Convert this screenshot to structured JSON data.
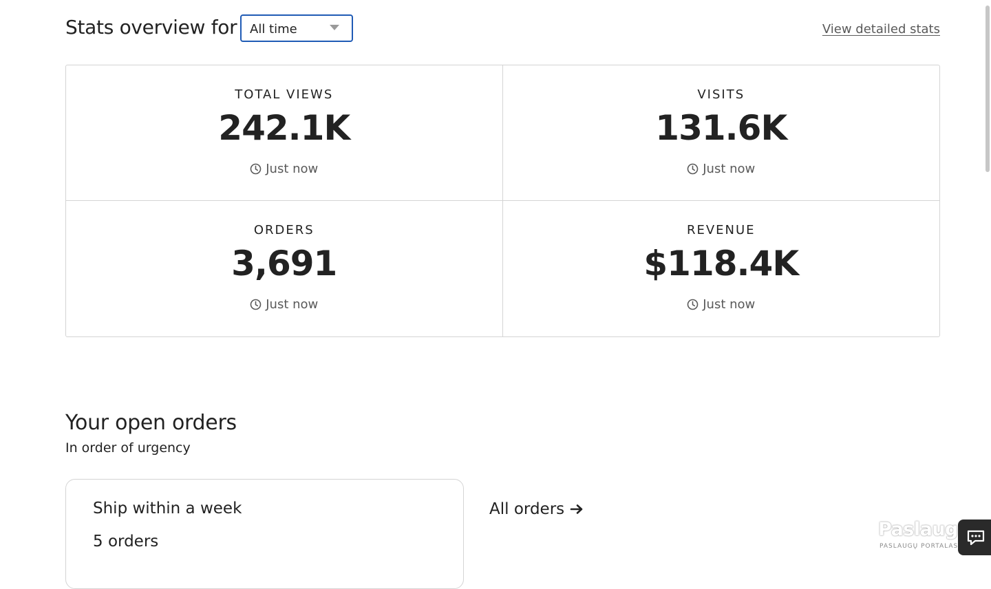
{
  "stats": {
    "title": "Stats overview for",
    "period_select": {
      "value": "All time"
    },
    "view_detailed_link": "View detailed stats",
    "cards": [
      {
        "label": "TOTAL VIEWS",
        "value": "242.1K",
        "updated": "Just now"
      },
      {
        "label": "VISITS",
        "value": "131.6K",
        "updated": "Just now"
      },
      {
        "label": "ORDERS",
        "value": "3,691",
        "updated": "Just now"
      },
      {
        "label": "REVENUE",
        "value": "$118.4K",
        "updated": "Just now"
      }
    ]
  },
  "open_orders": {
    "title": "Your open orders",
    "subtitle": "In order of urgency",
    "card": {
      "title": "Ship within a week",
      "count": "5 orders"
    },
    "all_orders_link": "All orders"
  },
  "watermark": {
    "logo_text": "Paslaugos.lt",
    "sub_text": "PASLAUGŲ PORTALAS"
  },
  "icons": {
    "clock": "clock-icon",
    "arrow": "arrow-right-icon",
    "caret": "chevron-down-icon",
    "chat": "chat-icon"
  },
  "colors": {
    "text": "#222222",
    "muted": "#595959",
    "border": "#d4d4d4",
    "select_focus": "#1f5bb5",
    "chat_bg": "#2a2a2a"
  }
}
